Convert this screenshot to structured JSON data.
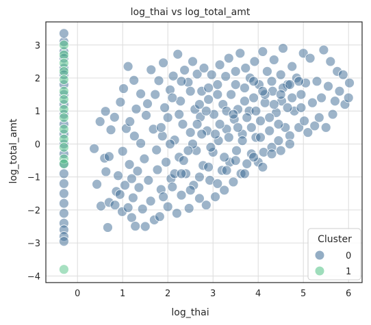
{
  "chart_data": {
    "type": "scatter",
    "title": "log_thai vs log_total_amt",
    "xlabel": "log_thai",
    "ylabel": "log_total_amt",
    "xlim": [
      -0.7,
      6.3
    ],
    "ylim": [
      -4.2,
      3.7
    ],
    "xticks": [
      0,
      1,
      2,
      3,
      4,
      5,
      6
    ],
    "yticks": [
      -4,
      -3,
      -2,
      -1,
      0,
      1,
      2,
      3
    ],
    "grid": true,
    "legend": {
      "title": "Cluster",
      "placement": "bottom-right",
      "entries": [
        {
          "label": "0",
          "color": "#3b6a93"
        },
        {
          "label": "1",
          "color": "#4fc184"
        }
      ]
    },
    "series": [
      {
        "name": "0",
        "color": "#3b6a93",
        "points": [
          [
            0.37,
            -0.14
          ],
          [
            0.43,
            -1.22
          ],
          [
            0.52,
            -1.88
          ],
          [
            0.5,
            0.68
          ],
          [
            0.6,
            -0.43
          ],
          [
            0.62,
            0.99
          ],
          [
            0.63,
            -0.84
          ],
          [
            0.67,
            -2.53
          ],
          [
            0.7,
            -1.77
          ],
          [
            0.7,
            -0.38
          ],
          [
            0.74,
            0.43
          ],
          [
            0.82,
            0.81
          ],
          [
            0.83,
            -1.85
          ],
          [
            0.86,
            -1.44
          ],
          [
            0.9,
            -0.96
          ],
          [
            0.94,
            -1.53
          ],
          [
            0.95,
            1.27
          ],
          [
            0.99,
            -2.05
          ],
          [
            1.0,
            -0.22
          ],
          [
            1.02,
            1.68
          ],
          [
            1.05,
            -1.25
          ],
          [
            1.08,
            0.47
          ],
          [
            1.12,
            2.35
          ],
          [
            1.12,
            -1.93
          ],
          [
            1.15,
            -0.62
          ],
          [
            1.16,
            0.68
          ],
          [
            1.2,
            -1.05
          ],
          [
            1.2,
            -2.23
          ],
          [
            1.23,
            -1.63
          ],
          [
            1.25,
            1.93
          ],
          [
            1.26,
            0.24
          ],
          [
            1.28,
            -2.49
          ],
          [
            1.3,
            1.06
          ],
          [
            1.33,
            -0.82
          ],
          [
            1.36,
            -1.32
          ],
          [
            1.4,
            1.52
          ],
          [
            1.4,
            0.02
          ],
          [
            1.44,
            -1.97
          ],
          [
            1.48,
            -0.45
          ],
          [
            1.5,
            -2.5
          ],
          [
            1.52,
            0.87
          ],
          [
            1.55,
            1.22
          ],
          [
            1.57,
            -1.1
          ],
          [
            1.62,
            -1.73
          ],
          [
            1.63,
            2.25
          ],
          [
            1.68,
            0.45
          ],
          [
            1.7,
            -2.3
          ],
          [
            1.72,
            1.5
          ],
          [
            1.75,
            -0.18
          ],
          [
            1.77,
            -0.78
          ],
          [
            1.8,
            1.92
          ],
          [
            1.82,
            -2.2
          ],
          [
            1.85,
            -1.38
          ],
          [
            1.88,
            0.24
          ],
          [
            1.9,
            2.46
          ],
          [
            1.93,
            1.1
          ],
          [
            1.96,
            -0.55
          ],
          [
            2.0,
            -1.9
          ],
          [
            2.0,
            0.8
          ],
          [
            2.05,
            1.64
          ],
          [
            2.07,
            -1.05
          ],
          [
            2.12,
            2.06
          ],
          [
            2.15,
            0.12
          ],
          [
            2.2,
            -2.1
          ],
          [
            2.22,
            2.72
          ],
          [
            2.25,
            -0.4
          ],
          [
            2.28,
            1.3
          ],
          [
            2.3,
            -1.55
          ],
          [
            2.33,
            0.6
          ],
          [
            2.37,
            2.24
          ],
          [
            2.4,
            -0.9
          ],
          [
            2.45,
            1.87
          ],
          [
            2.47,
            -1.95
          ],
          [
            2.5,
            0.35
          ],
          [
            2.55,
            2.5
          ],
          [
            2.57,
            -1.25
          ],
          [
            2.6,
            1.05
          ],
          [
            2.63,
            -0.2
          ],
          [
            2.65,
            2.12
          ],
          [
            2.7,
            -1.65
          ],
          [
            2.72,
            0.82
          ],
          [
            2.75,
            1.6
          ],
          [
            2.78,
            -0.65
          ],
          [
            2.8,
            2.3
          ],
          [
            2.85,
            -1.85
          ],
          [
            2.87,
            0.4
          ],
          [
            2.9,
            1.35
          ],
          [
            2.93,
            -1.1
          ],
          [
            2.97,
            2.1
          ],
          [
            3.0,
            -0.25
          ],
          [
            3.02,
            0.9
          ],
          [
            3.05,
            -1.6
          ],
          [
            3.1,
            1.8
          ],
          [
            3.12,
            0.1
          ],
          [
            3.15,
            2.4
          ],
          [
            3.2,
            -0.8
          ],
          [
            3.22,
            1.2
          ],
          [
            3.25,
            -1.4
          ],
          [
            3.28,
            2.05
          ],
          [
            3.3,
            0.45
          ],
          [
            3.35,
            2.6
          ],
          [
            3.37,
            -0.55
          ],
          [
            3.4,
            1.5
          ],
          [
            3.45,
            -1.15
          ],
          [
            3.47,
            0.75
          ],
          [
            3.5,
            2.2
          ],
          [
            3.52,
            -0.2
          ],
          [
            3.55,
            1.05
          ],
          [
            3.6,
            2.75
          ],
          [
            3.62,
            -0.9
          ],
          [
            3.65,
            0.3
          ],
          [
            3.7,
            1.7
          ],
          [
            3.72,
            2.3
          ],
          [
            3.75,
            -0.6
          ],
          [
            3.8,
            1.0
          ],
          [
            3.82,
            2.0
          ],
          [
            3.85,
            -0.3
          ],
          [
            3.9,
            1.4
          ],
          [
            3.92,
            2.5
          ],
          [
            3.95,
            0.2
          ],
          [
            4.0,
            -0.55
          ],
          [
            4.02,
            1.8
          ],
          [
            4.05,
            0.7
          ],
          [
            4.1,
            2.8
          ],
          [
            4.12,
            -0.25
          ],
          [
            4.15,
            1.25
          ],
          [
            4.2,
            2.2
          ],
          [
            4.25,
            0.4
          ],
          [
            4.3,
            -0.1
          ],
          [
            4.32,
            1.6
          ],
          [
            4.35,
            2.55
          ],
          [
            4.4,
            0.95
          ],
          [
            4.45,
            0.1
          ],
          [
            4.5,
            2.1
          ],
          [
            4.52,
            1.3
          ],
          [
            4.55,
            2.9
          ],
          [
            4.6,
            0.5
          ],
          [
            4.65,
            1.8
          ],
          [
            4.7,
            0.25
          ],
          [
            4.75,
            2.35
          ],
          [
            4.8,
            1.0
          ],
          [
            4.85,
            2.0
          ],
          [
            4.9,
            0.5
          ],
          [
            4.95,
            1.5
          ],
          [
            5.0,
            2.75
          ],
          [
            5.02,
            0.7
          ],
          [
            5.05,
            1.85
          ],
          [
            5.1,
            0.35
          ],
          [
            5.15,
            2.6
          ],
          [
            5.2,
            1.25
          ],
          [
            5.25,
            0.55
          ],
          [
            5.3,
            1.9
          ],
          [
            5.35,
            0.8
          ],
          [
            5.4,
            1.4
          ],
          [
            5.45,
            2.85
          ],
          [
            5.5,
            0.5
          ],
          [
            5.55,
            1.75
          ],
          [
            5.6,
            2.5
          ],
          [
            5.65,
            0.9
          ],
          [
            5.7,
            1.3
          ],
          [
            5.75,
            2.2
          ],
          [
            5.8,
            1.6
          ],
          [
            5.88,
            2.1
          ],
          [
            5.92,
            1.2
          ],
          [
            6.0,
            1.4
          ],
          [
            6.02,
            1.85
          ],
          [
            2.15,
            -0.9
          ],
          [
            2.35,
            -0.5
          ],
          [
            2.55,
            0.0
          ],
          [
            2.75,
            0.3
          ],
          [
            2.95,
            -0.1
          ],
          [
            3.15,
            0.6
          ],
          [
            3.35,
            0.2
          ],
          [
            3.55,
            0.5
          ],
          [
            3.75,
            0.8
          ],
          [
            3.95,
            1.0
          ],
          [
            4.15,
            1.5
          ],
          [
            4.35,
            1.2
          ],
          [
            4.55,
            1.7
          ],
          [
            4.75,
            1.4
          ],
          [
            4.95,
            1.1
          ],
          [
            2.1,
            1.4
          ],
          [
            2.3,
            1.9
          ],
          [
            2.5,
            1.6
          ],
          [
            2.7,
            1.2
          ],
          [
            2.9,
            1.7
          ],
          [
            3.1,
            1.5
          ],
          [
            3.3,
            1.0
          ],
          [
            3.5,
            1.8
          ],
          [
            3.7,
            1.3
          ],
          [
            3.9,
            1.9
          ],
          [
            4.1,
            1.6
          ],
          [
            4.3,
            1.9
          ],
          [
            4.5,
            1.5
          ],
          [
            4.7,
            1.8
          ],
          [
            4.9,
            1.9
          ],
          [
            1.9,
            -1.6
          ],
          [
            2.1,
            -1.3
          ],
          [
            2.3,
            -0.9
          ],
          [
            2.5,
            -1.4
          ],
          [
            2.7,
            -1.0
          ],
          [
            2.9,
            -0.7
          ],
          [
            3.1,
            -1.2
          ],
          [
            3.3,
            -0.8
          ],
          [
            3.5,
            -0.5
          ],
          [
            3.7,
            -0.9
          ],
          [
            3.9,
            -0.4
          ],
          [
            4.1,
            -0.7
          ],
          [
            4.3,
            -0.3
          ],
          [
            4.5,
            -0.2
          ],
          [
            4.7,
            0.0
          ],
          [
            1.85,
            0.5
          ],
          [
            2.05,
            0.0
          ],
          [
            2.25,
            0.9
          ],
          [
            2.45,
            -0.2
          ],
          [
            2.65,
            0.6
          ],
          [
            2.85,
            1.0
          ],
          [
            3.05,
            0.3
          ],
          [
            3.25,
            -0.4
          ],
          [
            3.45,
            0.9
          ],
          [
            3.65,
            0.1
          ],
          [
            3.85,
            0.5
          ],
          [
            4.05,
            0.2
          ],
          [
            4.25,
            0.8
          ],
          [
            4.45,
            0.6
          ],
          [
            4.65,
            1.1
          ],
          [
            -0.3,
            3.1
          ],
          [
            -0.3,
            2.8
          ],
          [
            -0.3,
            2.6
          ],
          [
            -0.3,
            2.3
          ],
          [
            -0.3,
            2.1
          ],
          [
            -0.3,
            1.8
          ],
          [
            -0.3,
            1.5
          ],
          [
            -0.3,
            1.2
          ],
          [
            -0.3,
            0.9
          ],
          [
            -0.3,
            0.6
          ],
          [
            -0.3,
            0.3
          ],
          [
            -0.3,
            0.0
          ],
          [
            -0.3,
            -0.3
          ],
          [
            -0.3,
            -0.6
          ],
          [
            -0.3,
            -0.9
          ],
          [
            -0.3,
            -1.2
          ],
          [
            -0.3,
            -1.5
          ],
          [
            -0.3,
            -1.8
          ],
          [
            -0.3,
            -2.1
          ],
          [
            -0.3,
            -2.4
          ],
          [
            -0.3,
            -2.6
          ],
          [
            -0.3,
            -2.8
          ],
          [
            -0.3,
            -2.95
          ],
          [
            -0.3,
            3.35
          ]
        ]
      },
      {
        "name": "1",
        "color": "#4fc184",
        "points": [
          [
            -0.3,
            3.0
          ],
          [
            -0.3,
            2.7
          ],
          [
            -0.3,
            2.45
          ],
          [
            -0.3,
            2.2
          ],
          [
            -0.3,
            1.95
          ],
          [
            -0.3,
            1.6
          ],
          [
            -0.3,
            1.35
          ],
          [
            -0.3,
            1.05
          ],
          [
            -0.3,
            0.8
          ],
          [
            -0.3,
            0.45
          ],
          [
            -0.3,
            0.15
          ],
          [
            -0.3,
            -0.1
          ],
          [
            -0.3,
            -0.45
          ],
          [
            -0.3,
            -0.6
          ],
          [
            -0.3,
            -3.8
          ]
        ]
      }
    ]
  }
}
